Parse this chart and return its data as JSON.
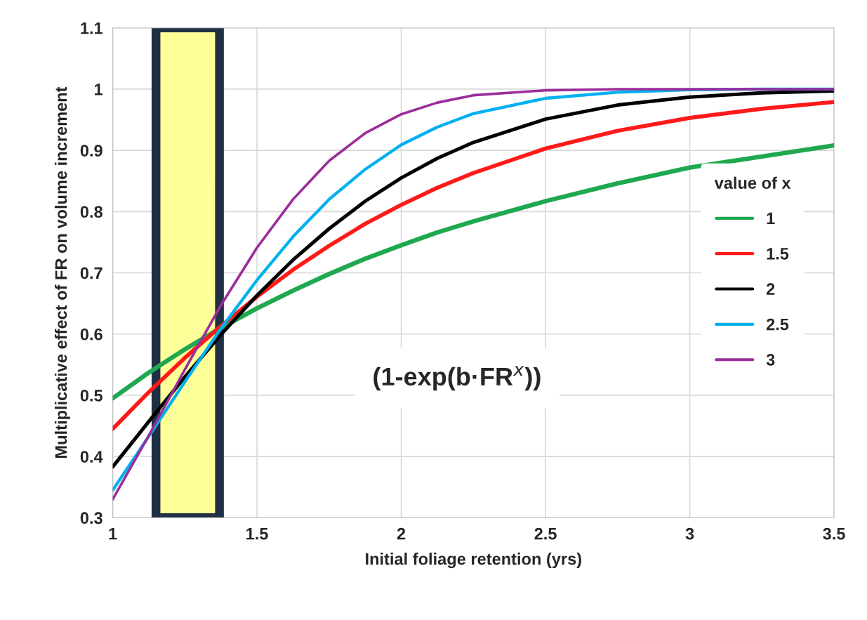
{
  "chart_data": {
    "type": "line",
    "xlabel": "Initial foliage retention (yrs)",
    "ylabel": "Multiplicative effect of FR on volume increment",
    "legend_title": "value of x",
    "legend": "right",
    "grid": true,
    "marker": "none",
    "line_style": "solid",
    "x": [
      1,
      1.125,
      1.25,
      1.375,
      1.5,
      1.625,
      1.75,
      1.875,
      2,
      2.125,
      2.25,
      2.5,
      2.75,
      3,
      3.25,
      3.5
    ],
    "xlim": [
      1,
      3.5
    ],
    "xticks": [
      1,
      1.5,
      2,
      2.5,
      3,
      3.5
    ],
    "ylim": [
      0.3,
      1.1
    ],
    "yticks": [
      0.3,
      0.4,
      0.5,
      0.6,
      0.7,
      0.8,
      0.9,
      1,
      1.1
    ],
    "series": [
      {
        "name": "1",
        "color": "#1fa84f",
        "values": [
          0.495,
          0.537,
          0.575,
          0.61,
          0.642,
          0.671,
          0.698,
          0.723,
          0.745,
          0.766,
          0.784,
          0.817,
          0.846,
          0.872,
          0.89,
          0.908
        ]
      },
      {
        "name": "1.5",
        "color": "#ff1a1a",
        "values": [
          0.445,
          0.505,
          0.561,
          0.613,
          0.661,
          0.705,
          0.744,
          0.78,
          0.811,
          0.839,
          0.863,
          0.903,
          0.932,
          0.953,
          0.968,
          0.979
        ]
      },
      {
        "name": "2",
        "color": "#000000",
        "values": [
          0.383,
          0.457,
          0.53,
          0.599,
          0.663,
          0.721,
          0.772,
          0.817,
          0.855,
          0.887,
          0.913,
          0.951,
          0.974,
          0.987,
          0.994,
          0.997
        ]
      },
      {
        "name": "2.5",
        "color": "#00b0f0",
        "values": [
          0.345,
          0.433,
          0.522,
          0.609,
          0.688,
          0.759,
          0.82,
          0.869,
          0.909,
          0.938,
          0.96,
          0.985,
          0.995,
          0.999,
          1.0,
          1.0
        ]
      },
      {
        "name": "3",
        "color": "#9b2d9b",
        "values": [
          0.33,
          0.434,
          0.542,
          0.647,
          0.741,
          0.82,
          0.883,
          0.928,
          0.959,
          0.978,
          0.99,
          0.998,
          1.0,
          1.0,
          1.0,
          1.0
        ]
      }
    ],
    "bands": [
      {
        "axis": "x",
        "from": 1.15,
        "to": 1.37,
        "color": "#ffff99"
      }
    ],
    "annotations": [
      "(1-exp(b·FR$^{x}$))"
    ]
  }
}
